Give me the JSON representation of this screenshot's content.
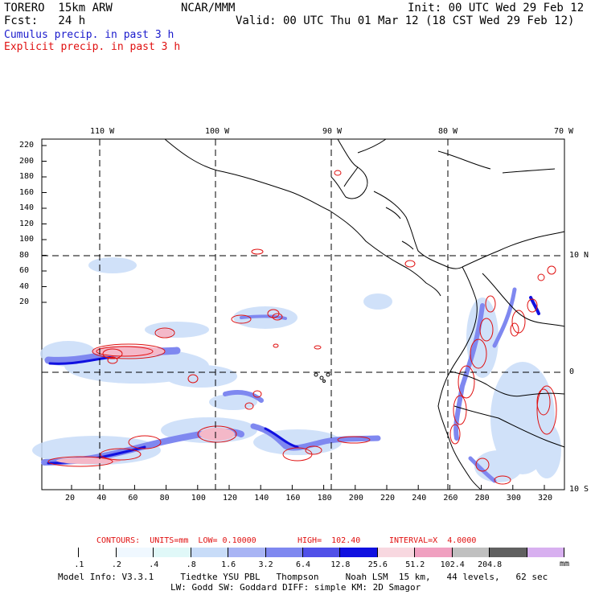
{
  "header": {
    "model": "TORERO  15km ARW",
    "org": "NCAR/MMM",
    "init": "Init: 00 UTC Wed 29 Feb 12",
    "fcst": "Fcst:   24 h",
    "valid": "Valid: 00 UTC Thu 01 Mar 12 (18 CST Wed 29 Feb 12)",
    "field1": "Cumulus precip. in past 3 h",
    "field2": "Explicit precip. in past 3 h"
  },
  "map": {
    "lon_labels": [
      "110 W",
      "100 W",
      "90 W",
      "80 W",
      "70 W"
    ],
    "lat_labels": [
      "10 N",
      "0",
      "10 S"
    ],
    "y_ticks": [
      "220",
      "200",
      "180",
      "160",
      "140",
      "120",
      "100",
      "80",
      "60",
      "40",
      "20"
    ],
    "x_ticks": [
      "20",
      "40",
      "60",
      "80",
      "100",
      "120",
      "140",
      "160",
      "180",
      "200",
      "220",
      "240",
      "260",
      "280",
      "300",
      "320"
    ],
    "colors": {
      "cumulus_light": "#c8dcf8",
      "cumulus_mid": "#7f88f0",
      "cumulus_dark": "#1010e0",
      "explicit_contour": "#e01010",
      "explicit_fill": "#f4b8c8"
    }
  },
  "contour_info": {
    "contours": "CONTOURS:  UNITS=mm  LOW= 0.10000",
    "high": "HIGH=  102.40",
    "interval": "INTERVAL=X  4.0000"
  },
  "colorbar": {
    "labels": [
      ".1",
      ".2",
      ".4",
      ".8",
      "1.6",
      "3.2",
      "6.4",
      "12.8",
      "25.6",
      "51.2",
      "102.4",
      "204.8"
    ],
    "unit": "mm",
    "colors": [
      "#ffffff",
      "#ffffff",
      "#f0f8ff",
      "#e0f8f8",
      "#c8dcf8",
      "#a8b4f4",
      "#7f88f0",
      "#5050e8",
      "#1010e0",
      "#f8d8e0",
      "#f0a0c0",
      "#c0c0c0",
      "#606060",
      "#d8b0f0"
    ]
  },
  "footer": {
    "line1": "Model Info: V3.3.1     Tiedtke YSU PBL   Thompson     Noah LSM  15 km,   44 levels,   62 sec",
    "line2": "LW: Godd SW: Goddard DIFF: simple KM: 2D Smagor"
  }
}
